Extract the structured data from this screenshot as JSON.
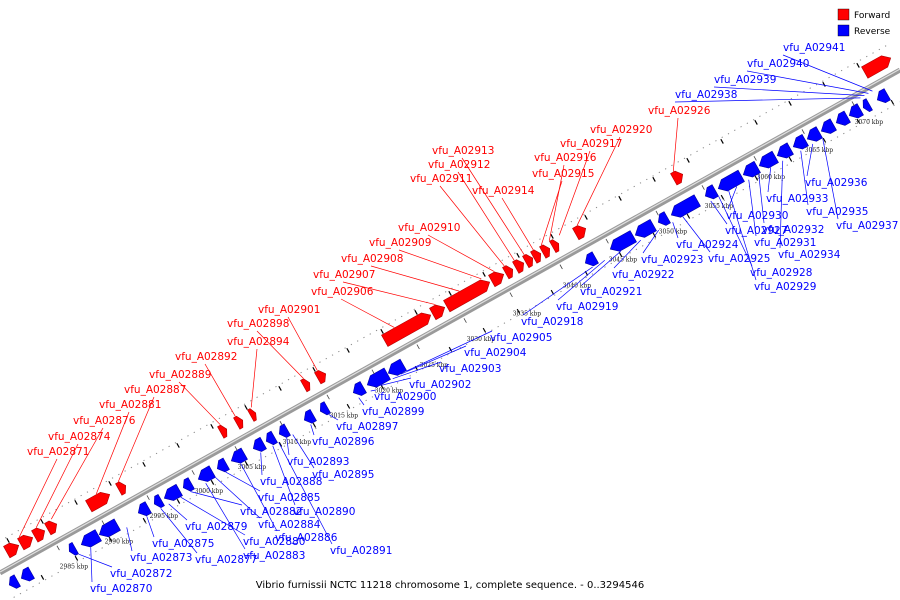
{
  "caption": "Vibrio furnissii NCTC 11218 chromosome 1, complete sequence. - 0..3294546",
  "legend": [
    {
      "label": "Forward",
      "color": "#ff0000"
    },
    {
      "label": "Reverse",
      "color": "#0000ff"
    }
  ],
  "colors": {
    "forward": "#ff0000",
    "reverse": "#0000ff",
    "backbone": "#8a8a8a"
  },
  "ticks": [
    "2985 kbp",
    "2990 kbp",
    "2995 kbp",
    "3000 kbp",
    "3005 kbp",
    "3010 kbp",
    "3015 kbp",
    "3020 kbp",
    "3025 kbp",
    "3030 kbp",
    "3035 kbp",
    "3040 kbp",
    "3045 kbp",
    "3050 kbp",
    "3055 kbp",
    "3060 kbp",
    "3065 kbp",
    "3070 kbp"
  ],
  "forward_labels": [
    "vfu_A02871",
    "vfu_A02874",
    "vfu_A02876",
    "vfu_A02881",
    "vfu_A02887",
    "vfu_A02889",
    "vfu_A02892",
    "vfu_A02894",
    "vfu_A02898",
    "vfu_A02901",
    "vfu_A02906",
    "vfu_A02907",
    "vfu_A02908",
    "vfu_A02909",
    "vfu_A02910",
    "vfu_A02911",
    "vfu_A02912",
    "vfu_A02913",
    "vfu_A02914",
    "vfu_A02915",
    "vfu_A02916",
    "vfu_A02917",
    "vfu_A02920",
    "vfu_A02926",
    "vfu_A02938",
    "vfu_A02939",
    "vfu_A02940",
    "vfu_A02941"
  ],
  "reverse_labels": [
    "vfu_A02870",
    "vfu_A02872",
    "vfu_A02873",
    "vfu_A02875",
    "vfu_A02877",
    "vfu_A02879",
    "vfu_A02880",
    "vfu_A02882",
    "vfu_A02883",
    "vfu_A02884",
    "vfu_A02885",
    "vfu_A02886",
    "vfu_A02888",
    "vfu_A02890",
    "vfu_A02891",
    "vfu_A02893",
    "vfu_A02895",
    "vfu_A02896",
    "vfu_A02897",
    "vfu_A02899",
    "vfu_A02900",
    "vfu_A02902",
    "vfu_A02903",
    "vfu_A02904",
    "vfu_A02905",
    "vfu_A02918",
    "vfu_A02919",
    "vfu_A02921",
    "vfu_A02922",
    "vfu_A02923",
    "vfu_A02924",
    "vfu_A02925",
    "vfu_A02927",
    "vfu_A02928",
    "vfu_A02929",
    "vfu_A02930",
    "vfu_A02931",
    "vfu_A02932",
    "vfu_A02933",
    "vfu_A02934",
    "vfu_A02935",
    "vfu_A02936",
    "vfu_A02937"
  ]
}
